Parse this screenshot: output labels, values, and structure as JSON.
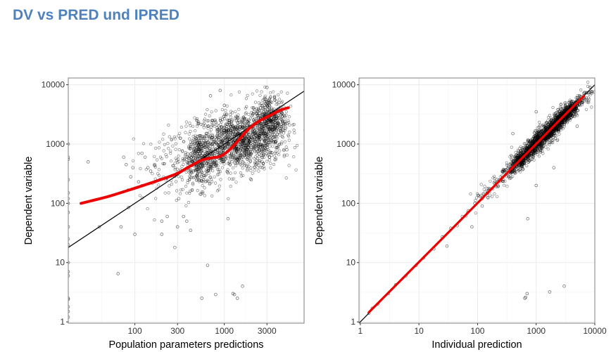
{
  "title": "DV vs PRED und IPRED",
  "colors": {
    "points": "#000000",
    "smooth": "#ee0000",
    "identity": "#000000",
    "grid": "#ebebeb",
    "frame": "#7f7f7f",
    "title": "#4f81bd"
  },
  "chart_data": [
    {
      "type": "scatter",
      "xlabel": "Population parameters predictions",
      "ylabel": "Dependent variable",
      "xscale": "log10",
      "yscale": "log10",
      "xlim": [
        18,
        7800
      ],
      "ylim": [
        0.95,
        13000
      ],
      "xticks": [
        100,
        300,
        1000,
        3000
      ],
      "xticklabels": [
        "100",
        "300",
        "1000",
        "3000"
      ],
      "yticks": [
        1,
        10,
        100,
        1000,
        10000
      ],
      "yticklabels": [
        "1",
        "10",
        "100",
        "1000",
        "10000"
      ],
      "grid": true,
      "series": [
        {
          "kind": "points",
          "cloud": [
            {
              "x": 1500,
              "y": 1100,
              "n": 1100,
              "sx": 0.23,
              "sy": 0.24
            },
            {
              "x": 550,
              "y": 560,
              "n": 420,
              "sx": 0.11,
              "sy": 0.25
            },
            {
              "x": 3200,
              "y": 2600,
              "n": 420,
              "sx": 0.1,
              "sy": 0.22
            },
            {
              "x": 250,
              "y": 420,
              "n": 110,
              "sx": 0.17,
              "sy": 0.3
            }
          ],
          "outliers": [
            {
              "x": 18,
              "y": 1000
            },
            {
              "x": 18,
              "y": 550
            },
            {
              "x": 18,
              "y": 600
            },
            {
              "x": 18,
              "y": 250
            },
            {
              "x": 18,
              "y": 150
            },
            {
              "x": 18,
              "y": 120
            },
            {
              "x": 18,
              "y": 100
            },
            {
              "x": 18,
              "y": 70
            },
            {
              "x": 18,
              "y": 40
            },
            {
              "x": 18,
              "y": 25
            },
            {
              "x": 18,
              "y": 20
            },
            {
              "x": 18,
              "y": 10
            },
            {
              "x": 18,
              "y": 7
            },
            {
              "x": 18,
              "y": 6
            },
            {
              "x": 18,
              "y": 2.5
            },
            {
              "x": 18,
              "y": 2.4
            },
            {
              "x": 18,
              "y": 1.8
            },
            {
              "x": 18,
              "y": 1.5
            },
            {
              "x": 18,
              "y": 1.2
            },
            {
              "x": 30,
              "y": 500
            },
            {
              "x": 40,
              "y": 40
            },
            {
              "x": 65,
              "y": 6.5
            },
            {
              "x": 70,
              "y": 40
            },
            {
              "x": 75,
              "y": 600
            },
            {
              "x": 80,
              "y": 450
            },
            {
              "x": 85,
              "y": 85
            },
            {
              "x": 90,
              "y": 280
            },
            {
              "x": 95,
              "y": 400
            },
            {
              "x": 100,
              "y": 30
            },
            {
              "x": 110,
              "y": 230
            },
            {
              "x": 120,
              "y": 700
            },
            {
              "x": 130,
              "y": 600
            },
            {
              "x": 140,
              "y": 400
            },
            {
              "x": 150,
              "y": 350
            },
            {
              "x": 200,
              "y": 50
            },
            {
              "x": 200,
              "y": 30
            },
            {
              "x": 230,
              "y": 60
            },
            {
              "x": 280,
              "y": 18
            },
            {
              "x": 300,
              "y": 40
            },
            {
              "x": 310,
              "y": 120
            },
            {
              "x": 350,
              "y": 60
            },
            {
              "x": 380,
              "y": 50
            },
            {
              "x": 420,
              "y": 35
            },
            {
              "x": 560,
              "y": 2.5
            },
            {
              "x": 650,
              "y": 9
            },
            {
              "x": 800,
              "y": 2.9
            },
            {
              "x": 1100,
              "y": 55
            },
            {
              "x": 1250,
              "y": 3
            },
            {
              "x": 1300,
              "y": 2.9
            },
            {
              "x": 1400,
              "y": 2.5
            },
            {
              "x": 1600,
              "y": 4
            },
            {
              "x": 700,
              "y": 6500
            },
            {
              "x": 900,
              "y": 8000
            },
            {
              "x": 1000,
              "y": 4500
            },
            {
              "x": 2000,
              "y": 250
            },
            {
              "x": 3000,
              "y": 9000
            },
            {
              "x": 3200,
              "y": 600
            },
            {
              "x": 4500,
              "y": 2000
            },
            {
              "x": 5000,
              "y": 800
            }
          ]
        },
        {
          "kind": "line",
          "name": "identity",
          "x": [
            18,
            7800
          ],
          "y": [
            18,
            7800
          ]
        },
        {
          "kind": "smooth",
          "x": [
            25,
            50,
            100,
            200,
            300,
            400,
            550,
            700,
            900,
            1100,
            1400,
            1800,
            2400,
            3200,
            4200,
            5200
          ],
          "y": [
            100,
            130,
            180,
            255,
            320,
            410,
            530,
            580,
            620,
            760,
            1100,
            1700,
            2400,
            3000,
            3700,
            4100
          ]
        }
      ]
    },
    {
      "type": "scatter",
      "xlabel": "Individual prediction",
      "ylabel": "Dependent variable",
      "xscale": "log10",
      "yscale": "log10",
      "xlim": [
        0.95,
        10000
      ],
      "ylim": [
        0.95,
        13000
      ],
      "xticks": [
        1,
        10,
        100,
        1000,
        10000
      ],
      "xticklabels": [
        "1",
        "10",
        "100",
        "1000",
        "10000"
      ],
      "yticks": [
        1,
        10,
        100,
        1000,
        10000
      ],
      "yticklabels": [
        "1",
        "10",
        "100",
        "1000",
        "10000"
      ],
      "grid": true,
      "series": [
        {
          "kind": "points",
          "cloud": [
            {
              "x": 1500,
              "y": 1500,
              "n": 1400,
              "sx": 0.3,
              "sy": 0.3,
              "corr": 0.95
            },
            {
              "x": 600,
              "y": 600,
              "n": 300,
              "sx": 0.16,
              "sy": 0.16,
              "corr": 0.9
            },
            {
              "x": 3200,
              "y": 3200,
              "n": 350,
              "sx": 0.13,
              "sy": 0.13,
              "corr": 0.9
            },
            {
              "x": 150,
              "y": 150,
              "n": 60,
              "sx": 0.2,
              "sy": 0.2,
              "corr": 0.9
            }
          ],
          "outliers": [
            {
              "x": 1.4,
              "y": 1.4
            },
            {
              "x": 1.6,
              "y": 1.7
            },
            {
              "x": 2,
              "y": 2
            },
            {
              "x": 3,
              "y": 3
            },
            {
              "x": 4,
              "y": 4.2
            },
            {
              "x": 6,
              "y": 6
            },
            {
              "x": 9,
              "y": 9
            },
            {
              "x": 12,
              "y": 12
            },
            {
              "x": 18,
              "y": 17
            },
            {
              "x": 25,
              "y": 27
            },
            {
              "x": 30,
              "y": 19
            },
            {
              "x": 35,
              "y": 38
            },
            {
              "x": 45,
              "y": 42
            },
            {
              "x": 55,
              "y": 60
            },
            {
              "x": 70,
              "y": 75
            },
            {
              "x": 80,
              "y": 40
            },
            {
              "x": 90,
              "y": 100
            },
            {
              "x": 110,
              "y": 130
            },
            {
              "x": 120,
              "y": 90
            },
            {
              "x": 640,
              "y": 2.5
            },
            {
              "x": 660,
              "y": 2.6
            },
            {
              "x": 700,
              "y": 3
            },
            {
              "x": 720,
              "y": 55
            },
            {
              "x": 1700,
              "y": 3.2
            },
            {
              "x": 3000,
              "y": 4
            },
            {
              "x": 1000,
              "y": 200
            },
            {
              "x": 2000,
              "y": 400
            },
            {
              "x": 400,
              "y": 1500
            },
            {
              "x": 1000,
              "y": 3500
            },
            {
              "x": 5000,
              "y": 2000
            }
          ]
        },
        {
          "kind": "line",
          "name": "identity",
          "x": [
            0.95,
            10000
          ],
          "y": [
            0.95,
            10000
          ]
        },
        {
          "kind": "smooth",
          "x": [
            1.4,
            10,
            100,
            300,
            700,
            1500,
            3000,
            6500
          ],
          "y": [
            1.45,
            10.2,
            101,
            305,
            705,
            1510,
            3020,
            6450
          ]
        }
      ]
    }
  ]
}
